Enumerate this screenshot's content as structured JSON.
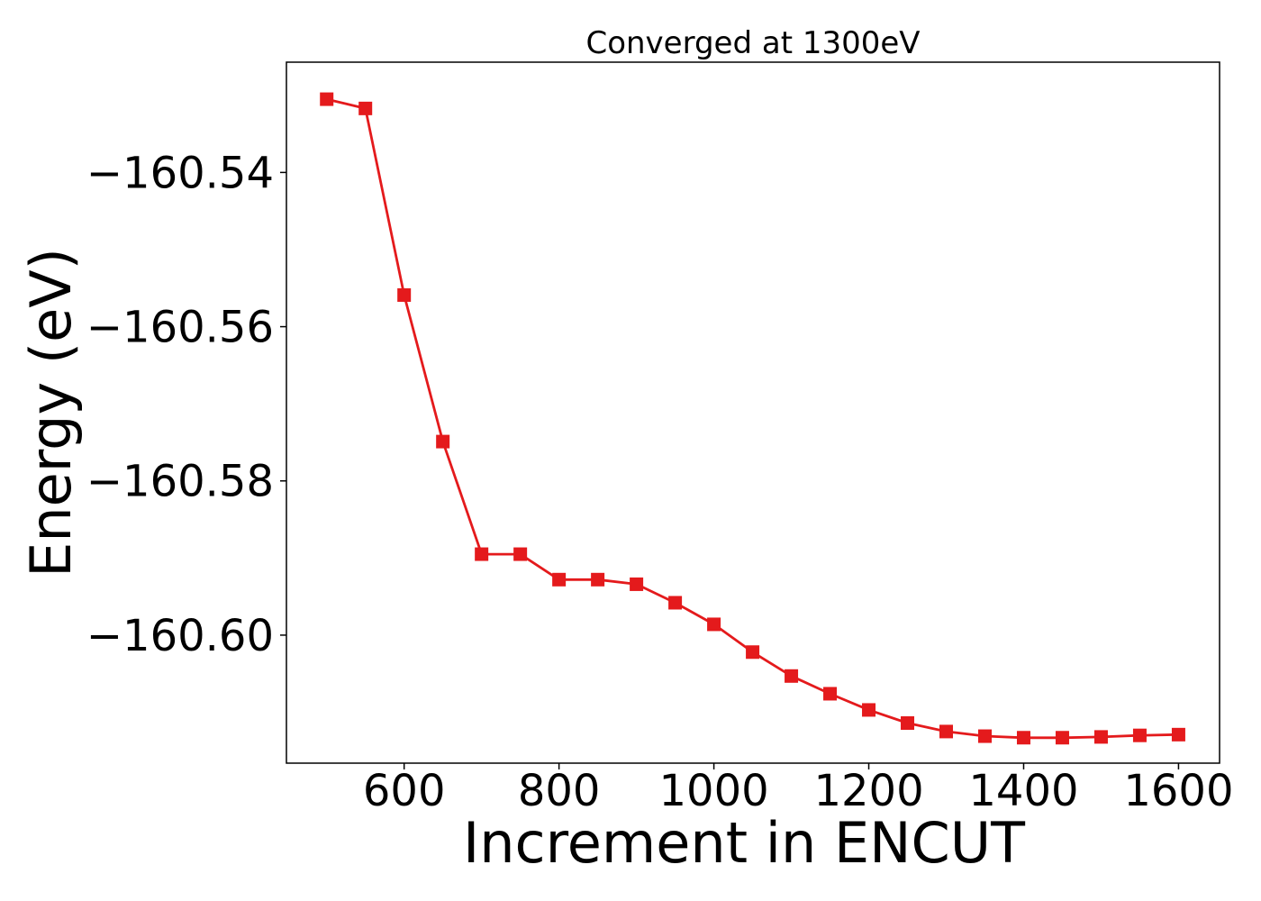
{
  "chart_data": {
    "type": "line",
    "title": "Converged at 1300eV",
    "xlabel": "Increment in ENCUT",
    "ylabel": "Energy (eV)",
    "xlim": [
      448,
      1653
    ],
    "ylim": [
      -160.6166,
      -160.5257
    ],
    "x_ticks": [
      600,
      800,
      1000,
      1200,
      1400,
      1600
    ],
    "x_tick_labels": [
      "600",
      "800",
      "1000",
      "1200",
      "1400",
      "1600"
    ],
    "y_ticks": [
      -160.54,
      -160.56,
      -160.58,
      -160.6
    ],
    "y_tick_labels": [
      "−160.54",
      "−160.56",
      "−160.58",
      "−160.60"
    ],
    "grid": false,
    "marker": "square",
    "series": [
      {
        "color": "#e41a1c",
        "x": [
          500,
          550,
          600,
          650,
          700,
          750,
          800,
          850,
          900,
          950,
          1000,
          1050,
          1100,
          1150,
          1200,
          1250,
          1300,
          1350,
          1400,
          1450,
          1500,
          1550,
          1600
        ],
        "y": [
          -160.5305,
          -160.5317,
          -160.5559,
          -160.5749,
          -160.5895,
          -160.5895,
          -160.5928,
          -160.5928,
          -160.5934,
          -160.5958,
          -160.5986,
          -160.6022,
          -160.6053,
          -160.6076,
          -160.6097,
          -160.6114,
          -160.6125,
          -160.6131,
          -160.6133,
          -160.6133,
          -160.6132,
          -160.613,
          -160.6129
        ]
      }
    ]
  }
}
